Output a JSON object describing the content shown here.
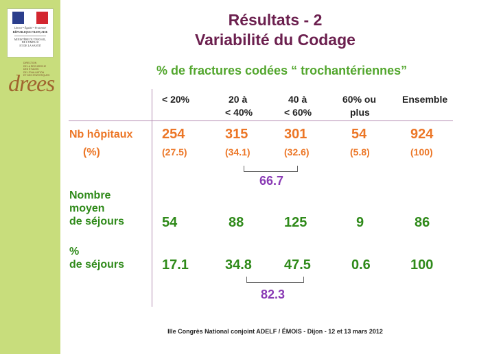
{
  "sidebar": {
    "rep_motto": "Liberté • Égalité • Fraternité",
    "rep_name": "RÉPUBLIQUE FRANÇAISE",
    "ministry": [
      "MINISTÈRE DU TRAVAIL,",
      "DE L'EMPLOI",
      "ET DE LA SANTÉ"
    ],
    "drees_lines": [
      "DIRECTION",
      "DE LA RECHERCHE",
      "DES ÉTUDES",
      "DE L'ÉVALUATION",
      "ET DES STATISTIQUES"
    ],
    "drees_word": "drees"
  },
  "title_line1": "Résultats - 2",
  "title_line2": "Variabilité du Codage",
  "subtitle": "% de fractures codées “ trochantériennes”",
  "columns": [
    {
      "l1": "< 20%",
      "l2": ""
    },
    {
      "l1": "20 à",
      "l2": "< 40%"
    },
    {
      "l1": "40 à",
      "l2": "< 60%"
    },
    {
      "l1": "60% ou",
      "l2": "plus"
    },
    {
      "l1": "Ensemble",
      "l2": ""
    }
  ],
  "row_hopitaux": {
    "label1": "Nb hôpitaux",
    "label2": "(%)",
    "values": [
      "254",
      "315",
      "301",
      "54",
      "924"
    ],
    "percents": [
      "(27.5)",
      "(34.1)",
      "(32.6)",
      "(5.8)",
      "(100)"
    ],
    "group_total": "66.7"
  },
  "row_moyen": {
    "label1": "Nombre",
    "label2": "moyen",
    "label3": "de séjours",
    "values": [
      "54",
      "88",
      "125",
      "9",
      "86"
    ]
  },
  "row_pct": {
    "label1": "%",
    "label2": "de séjours",
    "values": [
      "17.1",
      "34.8",
      "47.5",
      "0.6",
      "100"
    ],
    "group_total": "82.3"
  },
  "footer": "IIIe Congrès National conjoint ADELF / ÉMOIS - Dijon - 12 et 13 mars 2012",
  "colors": {
    "title": "#6b1f4e",
    "subtitle": "#52a62d",
    "orange": "#ec7626",
    "green": "#2f8a1a",
    "purple": "#8a3bb5",
    "sidebar": "#c8dd7c"
  }
}
